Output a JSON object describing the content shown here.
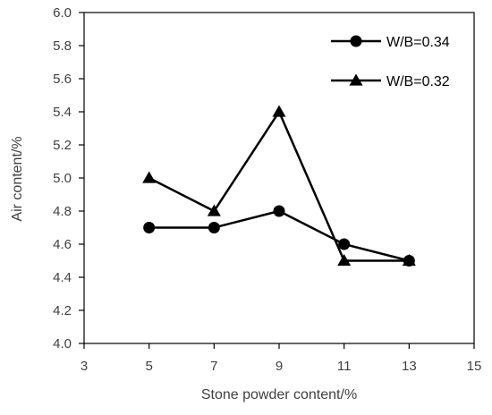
{
  "chart_data": {
    "type": "line",
    "title": "",
    "xlabel": "Stone powder content/%",
    "ylabel": "Air content/%",
    "xlim": [
      3,
      15
    ],
    "ylim": [
      4.0,
      6.0
    ],
    "x_ticks": [
      3,
      5,
      7,
      9,
      11,
      13,
      15
    ],
    "y_ticks": [
      "4.0",
      "4.2",
      "4.4",
      "4.6",
      "4.8",
      "5.0",
      "5.2",
      "5.4",
      "5.6",
      "5.8",
      "6.0"
    ],
    "grid": false,
    "legend_position": "top-right",
    "series": [
      {
        "name": "W/B=0.34",
        "marker": "circle",
        "color": "#000000",
        "x": [
          5,
          7,
          9,
          11,
          13
        ],
        "values": [
          4.7,
          4.7,
          4.8,
          4.6,
          4.5
        ]
      },
      {
        "name": "W/B=0.32",
        "marker": "triangle",
        "color": "#000000",
        "x": [
          5,
          7,
          9,
          11,
          13
        ],
        "values": [
          5.0,
          4.8,
          5.4,
          4.5,
          4.5
        ]
      }
    ]
  }
}
